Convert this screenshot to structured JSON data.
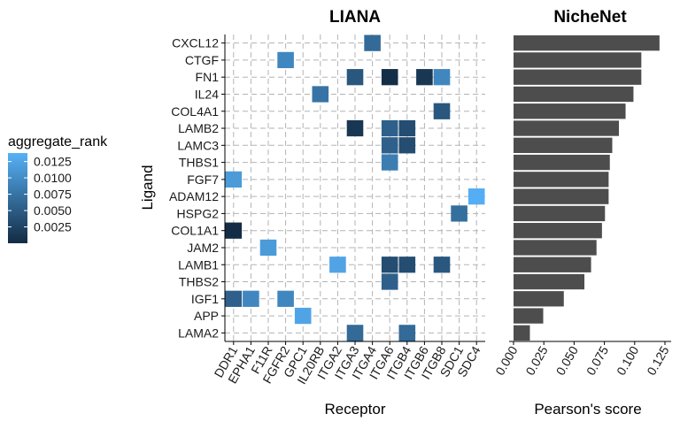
{
  "chart_data": [
    {
      "type": "heatmap",
      "title": "LIANA",
      "xlabel": "Receptor",
      "ylabel": "Ligand",
      "grid": true,
      "legend": {
        "title": "aggregate_rank",
        "placement": "left",
        "ticks": [
          "0.0125",
          "0.0100",
          "0.0075",
          "0.0050",
          "0.0025"
        ],
        "tick_values": [
          0.0125,
          0.01,
          0.0075,
          0.005,
          0.0025
        ],
        "range": [
          0.0,
          0.0138
        ],
        "color_low": "#132B43",
        "color_high": "#56B1F7"
      },
      "x_categories": [
        "DDR1",
        "EPHA1",
        "F11R",
        "FGFR2",
        "GPC1",
        "IL20RB",
        "ITGA2",
        "ITGA3",
        "ITGA4",
        "ITGA6",
        "ITGB4",
        "ITGB6",
        "ITGB8",
        "SDC1",
        "SDC4"
      ],
      "y_categories": [
        "CXCL12",
        "CTGF",
        "FN1",
        "IL24",
        "COL4A1",
        "LAMB2",
        "LAMC3",
        "THBS1",
        "FGF7",
        "ADAM12",
        "HSPG2",
        "COL1A1",
        "JAM2",
        "LAMB1",
        "THBS2",
        "IGF1",
        "APP",
        "LAMA2"
      ],
      "cells": [
        {
          "ligand": "CXCL12",
          "receptor": "ITGA4",
          "value": 0.0065
        },
        {
          "ligand": "CTGF",
          "receptor": "FGFR2",
          "value": 0.0095
        },
        {
          "ligand": "FN1",
          "receptor": "ITGA3",
          "value": 0.0045
        },
        {
          "ligand": "FN1",
          "receptor": "ITGA6",
          "value": 0.0003
        },
        {
          "ligand": "FN1",
          "receptor": "ITGB6",
          "value": 0.0012
        },
        {
          "ligand": "FN1",
          "receptor": "ITGB8",
          "value": 0.0095
        },
        {
          "ligand": "IL24",
          "receptor": "IL20RB",
          "value": 0.0075
        },
        {
          "ligand": "COL4A1",
          "receptor": "ITGB8",
          "value": 0.0045
        },
        {
          "ligand": "LAMB2",
          "receptor": "ITGA3",
          "value": 0.0012
        },
        {
          "ligand": "LAMB2",
          "receptor": "ITGA6",
          "value": 0.0055
        },
        {
          "ligand": "LAMB2",
          "receptor": "ITGB4",
          "value": 0.0035
        },
        {
          "ligand": "LAMC3",
          "receptor": "ITGA6",
          "value": 0.0055
        },
        {
          "ligand": "LAMC3",
          "receptor": "ITGB4",
          "value": 0.0035
        },
        {
          "ligand": "THBS1",
          "receptor": "ITGA6",
          "value": 0.0085
        },
        {
          "ligand": "FGF7",
          "receptor": "DDR1",
          "value": 0.0115
        },
        {
          "ligand": "ADAM12",
          "receptor": "SDC4",
          "value": 0.0135
        },
        {
          "ligand": "HSPG2",
          "receptor": "SDC1",
          "value": 0.007
        },
        {
          "ligand": "COL1A1",
          "receptor": "DDR1",
          "value": 0.0002
        },
        {
          "ligand": "JAM2",
          "receptor": "F11R",
          "value": 0.0115
        },
        {
          "ligand": "LAMB1",
          "receptor": "ITGA2",
          "value": 0.0125
        },
        {
          "ligand": "LAMB1",
          "receptor": "ITGA6",
          "value": 0.0035
        },
        {
          "ligand": "LAMB1",
          "receptor": "ITGB4",
          "value": 0.0035
        },
        {
          "ligand": "LAMB1",
          "receptor": "ITGB8",
          "value": 0.0045
        },
        {
          "ligand": "THBS2",
          "receptor": "ITGA6",
          "value": 0.0055
        },
        {
          "ligand": "IGF1",
          "receptor": "DDR1",
          "value": 0.0055
        },
        {
          "ligand": "IGF1",
          "receptor": "EPHA1",
          "value": 0.0095
        },
        {
          "ligand": "IGF1",
          "receptor": "FGFR2",
          "value": 0.0095
        },
        {
          "ligand": "APP",
          "receptor": "GPC1",
          "value": 0.0125
        },
        {
          "ligand": "LAMA2",
          "receptor": "ITGA3",
          "value": 0.0065
        },
        {
          "ligand": "LAMA2",
          "receptor": "ITGB4",
          "value": 0.0065
        }
      ]
    },
    {
      "type": "bar",
      "orientation": "horizontal",
      "title": "NicheNet",
      "xlabel": "Pearson's score",
      "ylabel": "",
      "xlim": [
        0,
        0.125
      ],
      "x_ticks": [
        "0.000",
        "0.025",
        "0.050",
        "0.075",
        "0.100",
        "0.125"
      ],
      "x_tick_values": [
        0,
        0.025,
        0.05,
        0.075,
        0.1,
        0.125
      ],
      "bar_color": "#4D4D4D",
      "categories": [
        "CXCL12",
        "CTGF",
        "FN1",
        "IL24",
        "COL4A1",
        "LAMB2",
        "LAMC3",
        "THBS1",
        "FGF7",
        "ADAM12",
        "HSPG2",
        "COL1A1",
        "JAM2",
        "LAMB1",
        "THBS2",
        "IGF1",
        "APP",
        "LAMA2"
      ],
      "values": [
        0.1205,
        0.1055,
        0.1055,
        0.099,
        0.0925,
        0.087,
        0.0815,
        0.0795,
        0.0785,
        0.0785,
        0.0755,
        0.073,
        0.0685,
        0.064,
        0.0585,
        0.0415,
        0.0245,
        0.0135
      ]
    }
  ]
}
